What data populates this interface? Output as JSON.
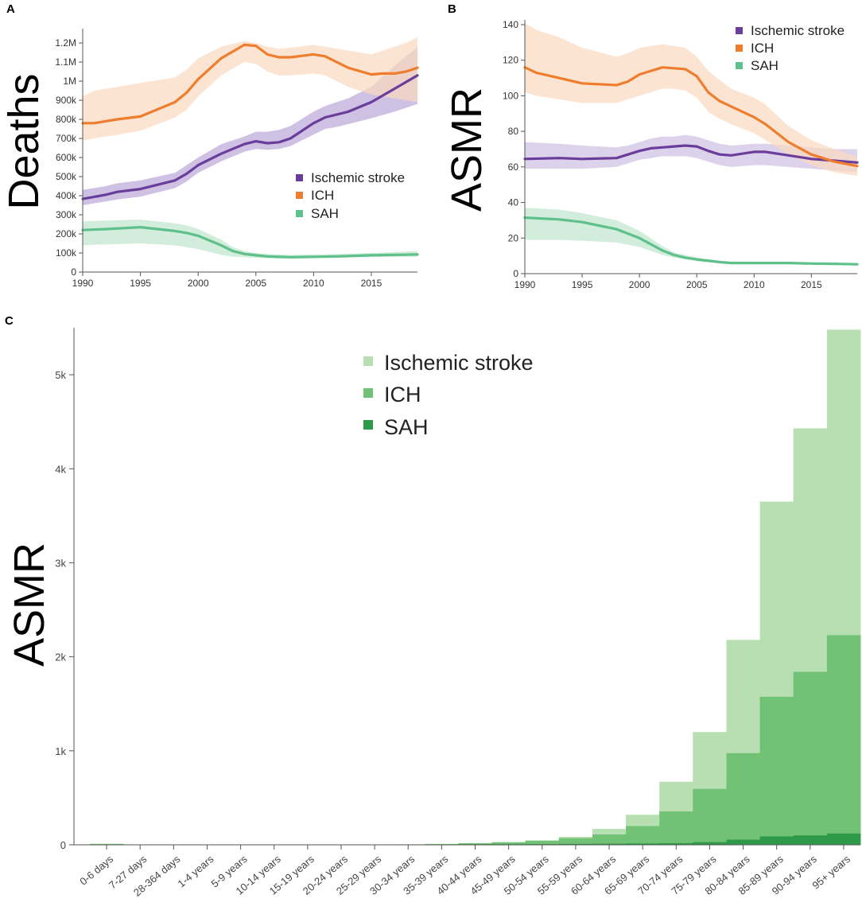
{
  "chart_data": [
    {
      "panel": "A",
      "type": "line",
      "ylabel": "Deaths",
      "xlim": [
        1990,
        2019
      ],
      "ylim": [
        0,
        1250000
      ],
      "x_ticks": [
        1990,
        1995,
        2000,
        2005,
        2010,
        2015
      ],
      "x_tick_labels": [
        "1990",
        "1995",
        "2000",
        "2005",
        "2010",
        "2015"
      ],
      "y_ticks": [
        0,
        100000,
        200000,
        300000,
        400000,
        500000,
        600000,
        700000,
        800000,
        900000,
        1000000,
        1100000,
        1200000
      ],
      "y_tick_labels": [
        "0",
        "100k",
        "200k",
        "300k",
        "400k",
        "500k",
        "600k",
        "700k",
        "800k",
        "900k",
        "1M",
        "1.1M",
        "1.2M"
      ],
      "legend": [
        "Ischemic stroke",
        "ICH",
        "SAH"
      ],
      "series": [
        {
          "name": "Ischemic stroke",
          "color": "#6a3d9a",
          "band_color": "#b9a6d8",
          "x": [
            1990,
            1992,
            1993,
            1995,
            1998,
            1999,
            2000,
            2002,
            2004,
            2005,
            2006,
            2007,
            2008,
            2010,
            2011,
            2012,
            2013,
            2015,
            2017,
            2019
          ],
          "values": [
            383000,
            405000,
            420000,
            435000,
            480000,
            515000,
            560000,
            620000,
            670000,
            685000,
            675000,
            680000,
            700000,
            780000,
            810000,
            825000,
            840000,
            890000,
            960000,
            1030000
          ],
          "lower": [
            350000,
            370000,
            380000,
            395000,
            440000,
            475000,
            520000,
            580000,
            630000,
            645000,
            640000,
            645000,
            660000,
            720000,
            750000,
            760000,
            775000,
            805000,
            840000,
            880000
          ],
          "upper": [
            430000,
            450000,
            465000,
            480000,
            520000,
            560000,
            600000,
            670000,
            710000,
            735000,
            735000,
            745000,
            765000,
            840000,
            870000,
            890000,
            910000,
            970000,
            1080000,
            1180000
          ]
        },
        {
          "name": "ICH",
          "color": "#ee7d2e",
          "band_color": "#fbd8bf",
          "x": [
            1990,
            1991,
            1993,
            1995,
            1998,
            1999,
            2000,
            2002,
            2004,
            2005,
            2006,
            2007,
            2008,
            2010,
            2011,
            2013,
            2015,
            2016,
            2017,
            2018,
            2019
          ],
          "values": [
            780000,
            780000,
            800000,
            815000,
            890000,
            940000,
            1010000,
            1120000,
            1190000,
            1185000,
            1140000,
            1125000,
            1125000,
            1140000,
            1130000,
            1070000,
            1035000,
            1040000,
            1040000,
            1050000,
            1070000
          ],
          "lower": [
            690000,
            700000,
            720000,
            740000,
            810000,
            850000,
            920000,
            1030000,
            1100000,
            1090000,
            1050000,
            1030000,
            1030000,
            1040000,
            1030000,
            970000,
            930000,
            920000,
            910000,
            900000,
            890000
          ],
          "upper": [
            920000,
            950000,
            970000,
            990000,
            1020000,
            1060000,
            1120000,
            1180000,
            1210000,
            1200000,
            1180000,
            1170000,
            1175000,
            1190000,
            1180000,
            1160000,
            1140000,
            1160000,
            1180000,
            1200000,
            1230000
          ]
        },
        {
          "name": "SAH",
          "color": "#5ec08a",
          "band_color": "#bfe6cd",
          "x": [
            1990,
            1992,
            1995,
            1998,
            1999,
            2000,
            2002,
            2003,
            2004,
            2005,
            2006,
            2007,
            2008,
            2010,
            2012,
            2015,
            2017,
            2019
          ],
          "values": [
            220000,
            225000,
            235000,
            215000,
            205000,
            190000,
            140000,
            110000,
            95000,
            88000,
            82000,
            80000,
            78000,
            80000,
            82000,
            88000,
            90000,
            92000
          ],
          "lower": [
            140000,
            145000,
            150000,
            140000,
            130000,
            120000,
            90000,
            80000,
            78000,
            75000,
            72000,
            70000,
            70000,
            72000,
            75000,
            78000,
            80000,
            80000
          ],
          "upper": [
            265000,
            270000,
            275000,
            255000,
            245000,
            225000,
            170000,
            130000,
            110000,
            100000,
            95000,
            92000,
            90000,
            92000,
            95000,
            100000,
            105000,
            110000
          ]
        }
      ]
    },
    {
      "panel": "B",
      "type": "line",
      "ylabel": "ASMR",
      "xlim": [
        1990,
        2019
      ],
      "ylim": [
        0,
        140
      ],
      "x_ticks": [
        1990,
        1995,
        2000,
        2005,
        2010,
        2015
      ],
      "x_tick_labels": [
        "1990",
        "1995",
        "2000",
        "2005",
        "2010",
        "2015"
      ],
      "y_ticks": [
        0,
        20,
        40,
        60,
        80,
        100,
        120,
        140
      ],
      "y_tick_labels": [
        "0",
        "20",
        "40",
        "60",
        "80",
        "100",
        "120",
        "140"
      ],
      "legend": [
        "Ischemic stroke",
        "ICH",
        "SAH"
      ],
      "series": [
        {
          "name": "Ischemic stroke",
          "color": "#6a3d9a",
          "band_color": "#cdbfe3",
          "x": [
            1990,
            1993,
            1995,
            1998,
            1999,
            2000,
            2001,
            2002,
            2003,
            2004,
            2005,
            2006,
            2007,
            2008,
            2010,
            2011,
            2013,
            2015,
            2017,
            2019
          ],
          "values": [
            64.5,
            65,
            64.5,
            65,
            67,
            69,
            70.5,
            71,
            71.5,
            72,
            71.5,
            69,
            67,
            66.5,
            68.5,
            68.5,
            66.5,
            64.5,
            63.5,
            62.5
          ],
          "lower": [
            59,
            59,
            59,
            60,
            62,
            64,
            65,
            66,
            66,
            66,
            65,
            63,
            61,
            60,
            61,
            61,
            60,
            59,
            58,
            57
          ],
          "upper": [
            74,
            73,
            72,
            71,
            72,
            74,
            76,
            77,
            77,
            78,
            77,
            75,
            73,
            72,
            73,
            73,
            72,
            71,
            70,
            70
          ]
        },
        {
          "name": "ICH",
          "color": "#ee7d2e",
          "band_color": "#fbd8bf",
          "x": [
            1990,
            1991,
            1993,
            1995,
            1998,
            1999,
            2000,
            2002,
            2003,
            2004,
            2005,
            2006,
            2007,
            2008,
            2010,
            2011,
            2012,
            2013,
            2015,
            2017,
            2019
          ],
          "values": [
            116,
            113,
            110,
            107,
            106,
            108,
            112,
            116,
            115.5,
            115,
            111,
            102,
            97,
            94,
            88,
            84,
            79,
            74,
            67,
            63,
            60.5
          ],
          "lower": [
            102,
            100,
            98,
            96,
            96,
            98,
            100,
            104,
            104,
            103,
            99,
            91,
            87,
            84,
            79,
            75,
            71,
            67,
            61,
            57,
            55
          ],
          "upper": [
            141,
            137,
            133,
            127,
            122,
            124,
            127,
            129,
            128,
            127,
            122,
            114,
            109,
            104,
            99,
            95,
            89,
            83,
            75,
            70,
            66
          ]
        },
        {
          "name": "SAH",
          "color": "#5ec08a",
          "band_color": "#bfe6cd",
          "x": [
            1990,
            1993,
            1995,
            1998,
            2000,
            2002,
            2003,
            2004,
            2005,
            2007,
            2008,
            2010,
            2013,
            2015,
            2017,
            2019
          ],
          "values": [
            31.5,
            30.5,
            29,
            25,
            20,
            13,
            10.5,
            9,
            8,
            6.5,
            6,
            6,
            6,
            5.7,
            5.5,
            5.3
          ],
          "lower": [
            19,
            19,
            18.5,
            17.5,
            15,
            10.5,
            9,
            8,
            7,
            6,
            5.5,
            5.3,
            5.3,
            5,
            4.8,
            4.6
          ],
          "upper": [
            37,
            36,
            34,
            30,
            24,
            15.5,
            12,
            10.5,
            9,
            7.3,
            6.8,
            6.7,
            6.7,
            6.4,
            6.2,
            6
          ]
        }
      ]
    },
    {
      "panel": "C",
      "type": "bar",
      "stacked": "overlay",
      "ylabel": "ASMR",
      "ylim": [
        0,
        5500
      ],
      "y_ticks": [
        0,
        1000,
        2000,
        3000,
        4000,
        5000
      ],
      "y_tick_labels": [
        "0",
        "1k",
        "2k",
        "3k",
        "4k",
        "5k"
      ],
      "categories": [
        "0-6 days",
        "7-27 days",
        "28-364 days",
        "1-4 years",
        "5-9 years",
        "10-14 years",
        "15-19 years",
        "20-24 years",
        "25-29 years",
        "30-34 years",
        "35-39 years",
        "40-44 years",
        "45-49 years",
        "50-54 years",
        "55-59 years",
        "60-64 years",
        "65-69 years",
        "70-74 years",
        "75-79 years",
        "80-84 years",
        "85-89 years",
        "90-94 years",
        "95+ years"
      ],
      "legend": [
        "Ischemic stroke",
        "ICH",
        "SAH"
      ],
      "series": [
        {
          "name": "Ischemic stroke",
          "color": "#b7dfb2",
          "values": [
            6,
            1,
            1,
            1,
            1,
            1,
            1,
            2,
            2,
            4,
            6,
            12,
            22,
            45,
            85,
            170,
            320,
            670,
            1200,
            2180,
            3650,
            4430,
            5480
          ]
        },
        {
          "name": "ICH",
          "color": "#72c275",
          "values": [
            10,
            1,
            1,
            1,
            1,
            1,
            1,
            2,
            3,
            5,
            9,
            18,
            28,
            45,
            70,
            110,
            200,
            355,
            595,
            975,
            1575,
            1840,
            2230
          ]
        },
        {
          "name": "SAH",
          "color": "#2e9a49",
          "values": [
            0,
            0,
            0,
            0,
            0,
            1,
            1,
            1,
            2,
            3,
            4,
            6,
            7,
            8,
            10,
            12,
            14,
            18,
            28,
            55,
            90,
            100,
            120
          ]
        }
      ]
    }
  ]
}
